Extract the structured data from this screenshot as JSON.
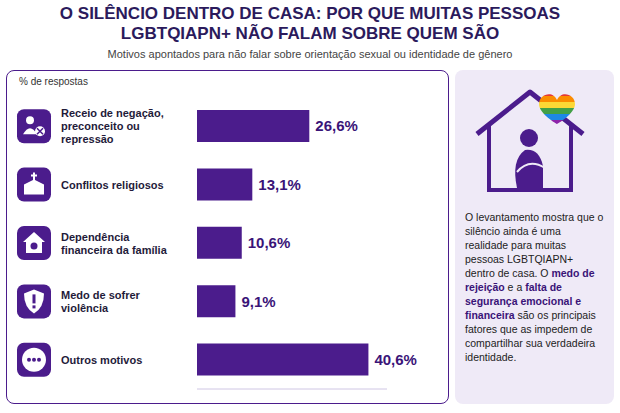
{
  "chart_data": {
    "type": "bar",
    "title": "O SILÊNCIO DENTRO DE CASA: POR QUE MUITAS PESSOAS LGBTQIAPN+ NÃO FALAM SOBRE QUEM SÃO",
    "subtitle": "Motivos apontados para não falar sobre orientação sexual ou identidade de gênero",
    "xlabel": "% de respostas",
    "categories": [
      "Receio de negação, preconceito ou repressão",
      "Conflitos religiosos",
      "Dependência financeira da família",
      "Medo de sofrer violência",
      "Outros motivos"
    ],
    "values": [
      26.6,
      13.1,
      10.6,
      9.1,
      40.6
    ],
    "value_labels": [
      "26,6%",
      "13,1%",
      "10,6%",
      "9,1%",
      "40,6%"
    ],
    "color": "#4b1c8c",
    "orientation": "horizontal",
    "data_labels": true,
    "xlim": [
      0,
      45
    ],
    "tick_labels": "y"
  },
  "side_note": [
    "O levantamento mostra que o silêncio ainda é uma realidade para muitas pessoas LGBTQIAPN+ dentro de casa. O ",
    "medo de rejeição",
    " e a ",
    "falta de segurança emocional e financeira",
    " são os principais fatores que as impedem de compartilhar sua verdadeira identidade."
  ]
}
